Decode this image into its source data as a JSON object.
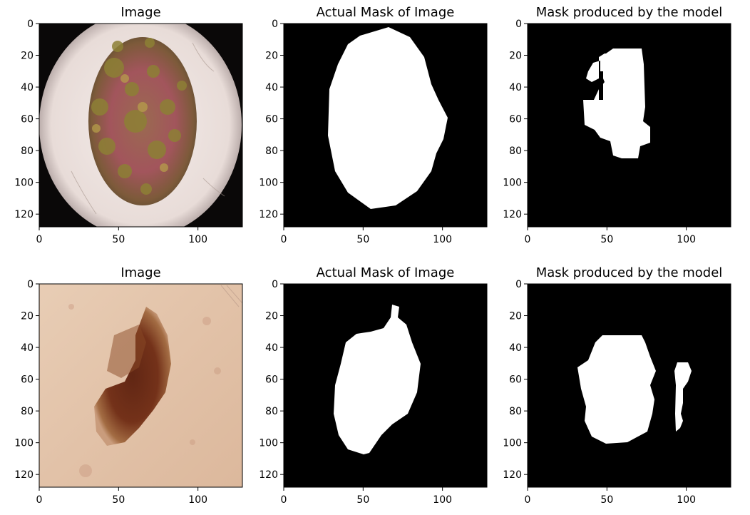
{
  "chart_data": [
    {
      "type": "image",
      "panel": "image",
      "title": "Image",
      "xlim": [
        0,
        128
      ],
      "ylim": [
        128,
        0
      ],
      "xticks": [
        0,
        50,
        100
      ],
      "yticks": [
        0,
        20,
        40,
        60,
        80,
        100,
        120
      ],
      "content": "dermoscopy-photo-lesion-1"
    },
    {
      "type": "image",
      "panel": "actual-mask",
      "title": "Actual Mask of Image",
      "xlim": [
        0,
        128
      ],
      "ylim": [
        128,
        0
      ],
      "xticks": [
        0,
        50,
        100
      ],
      "yticks": [
        0,
        20,
        40,
        60,
        80,
        100,
        120
      ],
      "content": "binary-mask",
      "region_bounds": {
        "x": [
          28,
          102
        ],
        "y": [
          2,
          117
        ]
      }
    },
    {
      "type": "image",
      "panel": "predicted-mask",
      "title": "Mask produced by the model",
      "xlim": [
        0,
        128
      ],
      "ylim": [
        128,
        0
      ],
      "xticks": [
        0,
        50,
        100
      ],
      "yticks": [
        0,
        20,
        40,
        60,
        80,
        100,
        120
      ],
      "content": "binary-mask",
      "region_bounds": {
        "x": [
          34,
          77
        ],
        "y": [
          16,
          86
        ]
      }
    },
    {
      "type": "image",
      "panel": "image",
      "title": "Image",
      "xlim": [
        0,
        128
      ],
      "ylim": [
        128,
        0
      ],
      "xticks": [
        0,
        50,
        100
      ],
      "yticks": [
        0,
        20,
        40,
        60,
        80,
        100,
        120
      ],
      "content": "dermoscopy-photo-lesion-2"
    },
    {
      "type": "image",
      "panel": "actual-mask",
      "title": "Actual Mask of Image",
      "xlim": [
        0,
        128
      ],
      "ylim": [
        128,
        0
      ],
      "xticks": [
        0,
        50,
        100
      ],
      "yticks": [
        0,
        20,
        40,
        60,
        80,
        100,
        120
      ],
      "content": "binary-mask",
      "region_bounds": {
        "x": [
          30,
          86
        ],
        "y": [
          12,
          107
        ]
      }
    },
    {
      "type": "image",
      "panel": "predicted-mask",
      "title": "Mask produced by the model",
      "xlim": [
        0,
        128
      ],
      "ylim": [
        128,
        0
      ],
      "xticks": [
        0,
        50,
        100
      ],
      "yticks": [
        0,
        20,
        40,
        60,
        80,
        100,
        120
      ],
      "content": "binary-mask",
      "region_bounds": {
        "x": [
          27,
          104
        ],
        "y": [
          32,
          102
        ]
      }
    }
  ],
  "colors": {
    "mask_background": "#000000",
    "mask_foreground": "#ffffff",
    "skin_light": "#ecdcd7",
    "skin_tan": "#e2c2a8",
    "vignette": "#0a0808",
    "lesion1_red": "#a2555c",
    "lesion1_olive": "#8d8035",
    "lesion2_brown": "#6e2a12"
  }
}
